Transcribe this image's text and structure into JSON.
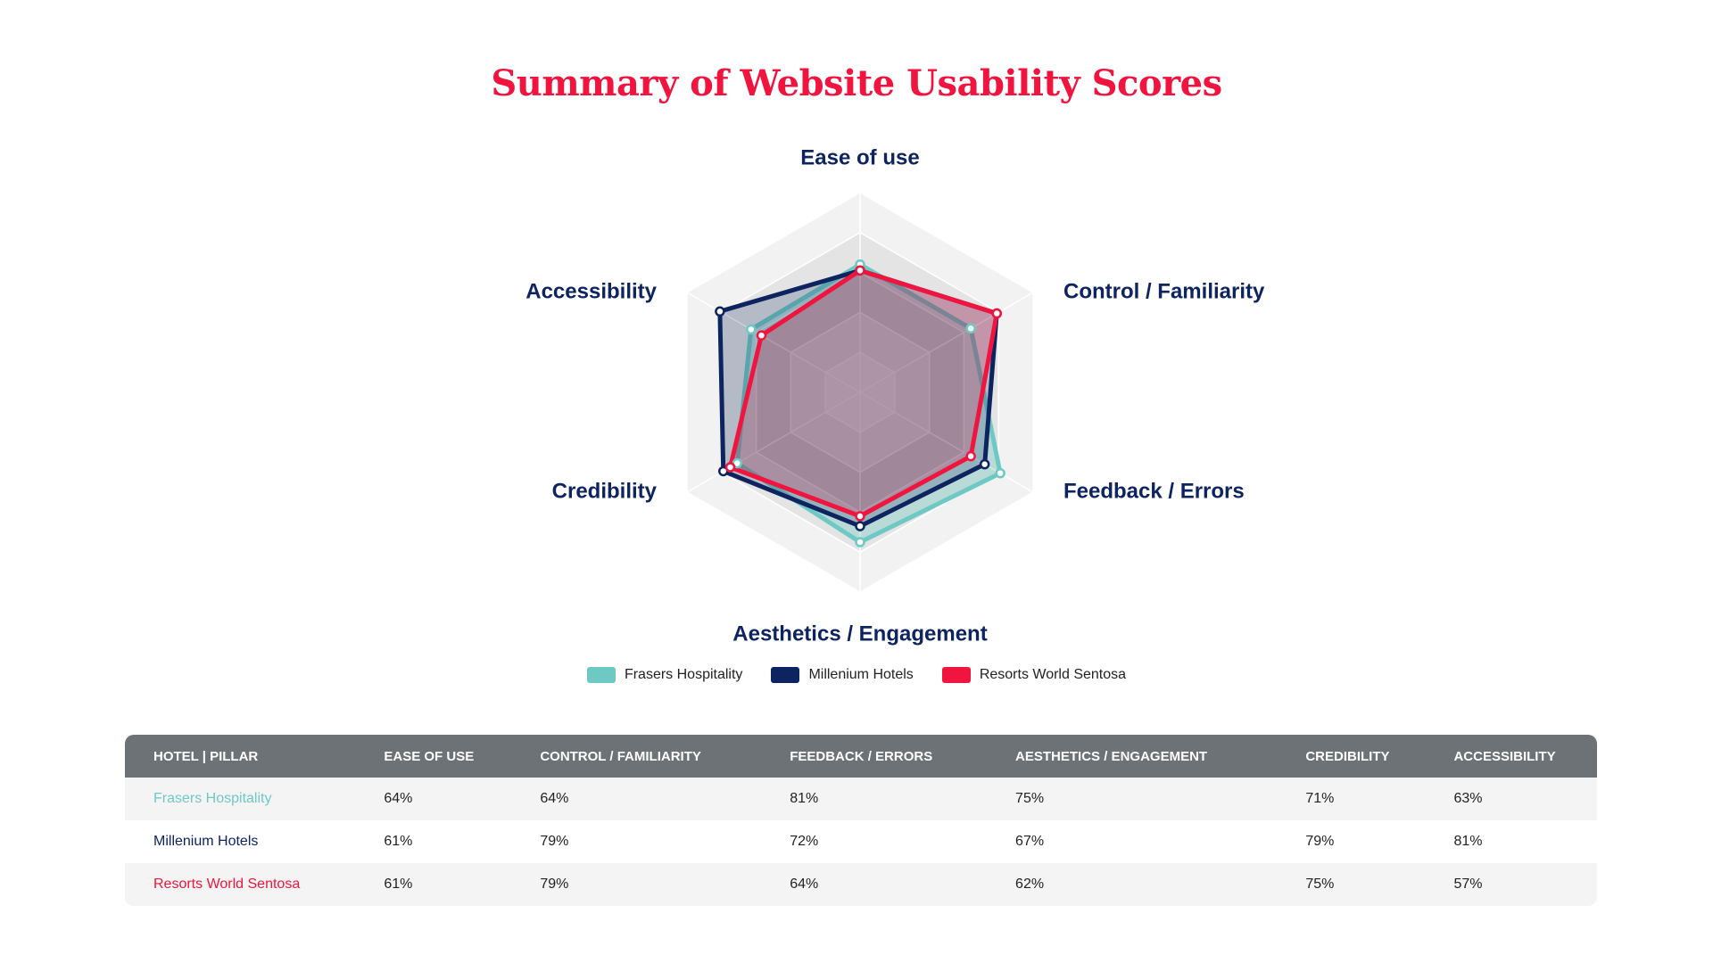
{
  "title": "Summary of Website Usability Scores",
  "chart_data": {
    "type": "radar",
    "axes": [
      "Ease of use",
      "Control / Familiarity",
      "Feedback / Errors",
      "Aesthetics / Engagement",
      "Credibility",
      "Accessibility"
    ],
    "rlim": [
      0,
      100
    ],
    "grid": true,
    "legend_position": "bottom",
    "series": [
      {
        "name": "Frasers Hospitality",
        "color": "#6ec9c4",
        "values": [
          64,
          64,
          81,
          75,
          71,
          63
        ]
      },
      {
        "name": "Millenium Hotels",
        "color": "#0d2461",
        "values": [
          61,
          79,
          72,
          67,
          79,
          81
        ]
      },
      {
        "name": "Resorts World Sentosa",
        "color": "#f0143e",
        "values": [
          61,
          79,
          64,
          62,
          75,
          57
        ]
      }
    ]
  },
  "table": {
    "headers": [
      "HOTEL | PILLAR",
      "EASE OF USE",
      "CONTROL / FAMILIARITY",
      "FEEDBACK / ERRORS",
      "AESTHETICS / ENGAGEMENT",
      "CREDIBILITY",
      "ACCESSIBILITY"
    ],
    "rows": [
      {
        "name": "Frasers Hospitality",
        "color": "#6ec9c4",
        "cells": [
          "64%",
          "64%",
          "81%",
          "75%",
          "71%",
          "63%"
        ]
      },
      {
        "name": "Millenium Hotels",
        "color": "#0d2461",
        "cells": [
          "61%",
          "79%",
          "72%",
          "67%",
          "79%",
          "81%"
        ]
      },
      {
        "name": "Resorts World Sentosa",
        "color": "#f0143e",
        "cells": [
          "61%",
          "79%",
          "64%",
          "62%",
          "75%",
          "57%"
        ]
      }
    ]
  }
}
